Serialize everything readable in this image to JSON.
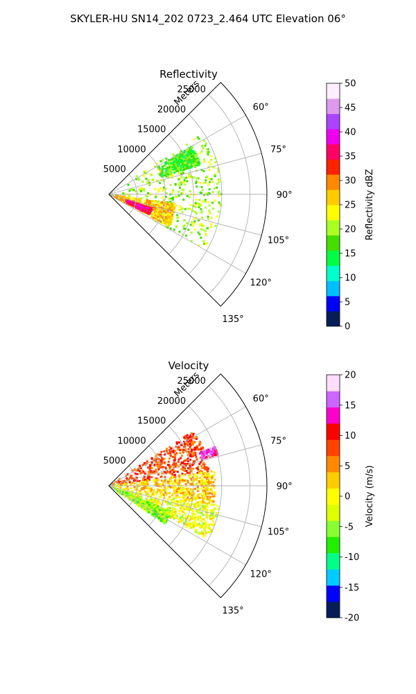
{
  "title": "SKYLER-HU  SN14_202  0723_2.464 UTC Elevation 06°",
  "chart_data": [
    {
      "type": "heatmap",
      "title": "Reflectivity",
      "range_label": "Meters",
      "range_ticks": [
        "5000",
        "10000",
        "15000",
        "20000",
        "25000"
      ],
      "range_tick_values": [
        5000,
        10000,
        15000,
        20000,
        25000
      ],
      "range_max": 28000,
      "azimuth_ticks": [
        "60°",
        "75°",
        "90°",
        "105°",
        "120°",
        "135°"
      ],
      "azimuth_tick_values": [
        60,
        75,
        90,
        105,
        120,
        135
      ],
      "azimuth_range": [
        45,
        135
      ],
      "grid": true,
      "colorbar": {
        "label": "Reflectivity dBZ",
        "ticks": [
          "0",
          "5",
          "10",
          "15",
          "20",
          "25",
          "30",
          "35",
          "40",
          "45",
          "50"
        ],
        "min": 0,
        "max": 50
      },
      "colorscale": [
        "#081d58",
        "#0000ff",
        "#00bfff",
        "#00ffcc",
        "#00ff44",
        "#44dd00",
        "#aaff22",
        "#ffff00",
        "#ffcc00",
        "#ff8800",
        "#ff2200",
        "#ff0066",
        "#ee00ee",
        "#aa44ff",
        "#dd99ee",
        "#ffeeff"
      ],
      "echo_clusters": [
        {
          "azimuth": [
            57,
            120
          ],
          "range": [
            0,
            20000
          ],
          "value": 20
        },
        {
          "azimuth": [
            98,
            118
          ],
          "range": [
            0,
            12000
          ],
          "value": 27
        },
        {
          "azimuth": [
            60,
            72
          ],
          "range": [
            9000,
            17000
          ],
          "value": 17
        },
        {
          "azimuth": [
            108,
            116
          ],
          "range": [
            3000,
            8000
          ],
          "value": 36
        }
      ]
    },
    {
      "type": "heatmap",
      "title": "Velocity",
      "range_label": "Meters",
      "range_ticks": [
        "5000",
        "10000",
        "15000",
        "20000",
        "25000"
      ],
      "range_tick_values": [
        5000,
        10000,
        15000,
        20000,
        25000
      ],
      "range_max": 28000,
      "azimuth_ticks": [
        "60°",
        "75°",
        "90°",
        "105°",
        "120°",
        "135°"
      ],
      "azimuth_tick_values": [
        60,
        75,
        90,
        105,
        120,
        135
      ],
      "azimuth_range": [
        45,
        135
      ],
      "grid": true,
      "colorbar": {
        "label": "Velocity (m/s)",
        "ticks": [
          "-20",
          "-15",
          "-10",
          "-5",
          "0",
          "5",
          "10",
          "15",
          "20"
        ],
        "min": -20,
        "max": 20
      },
      "colorscale": [
        "#081d58",
        "#0000ff",
        "#00ccff",
        "#00ff88",
        "#22ee00",
        "#88ff33",
        "#ddff00",
        "#ffff00",
        "#ffcc00",
        "#ff8800",
        "#ff4400",
        "#ff0000",
        "#ff00cc",
        "#cc66ff",
        "#ffddff"
      ],
      "echo_clusters": [
        {
          "azimuth": [
            57,
            82
          ],
          "range": [
            0,
            18000
          ],
          "value": 8
        },
        {
          "azimuth": [
            82,
            100
          ],
          "range": [
            0,
            19000
          ],
          "value": 2
        },
        {
          "azimuth": [
            100,
            118
          ],
          "range": [
            0,
            20000
          ],
          "value": -1
        },
        {
          "azimuth": [
            112,
            124
          ],
          "range": [
            0,
            12000
          ],
          "value": -5
        },
        {
          "azimuth": [
            70,
            74
          ],
          "range": [
            17000,
            20000
          ],
          "value": 15
        }
      ]
    }
  ]
}
